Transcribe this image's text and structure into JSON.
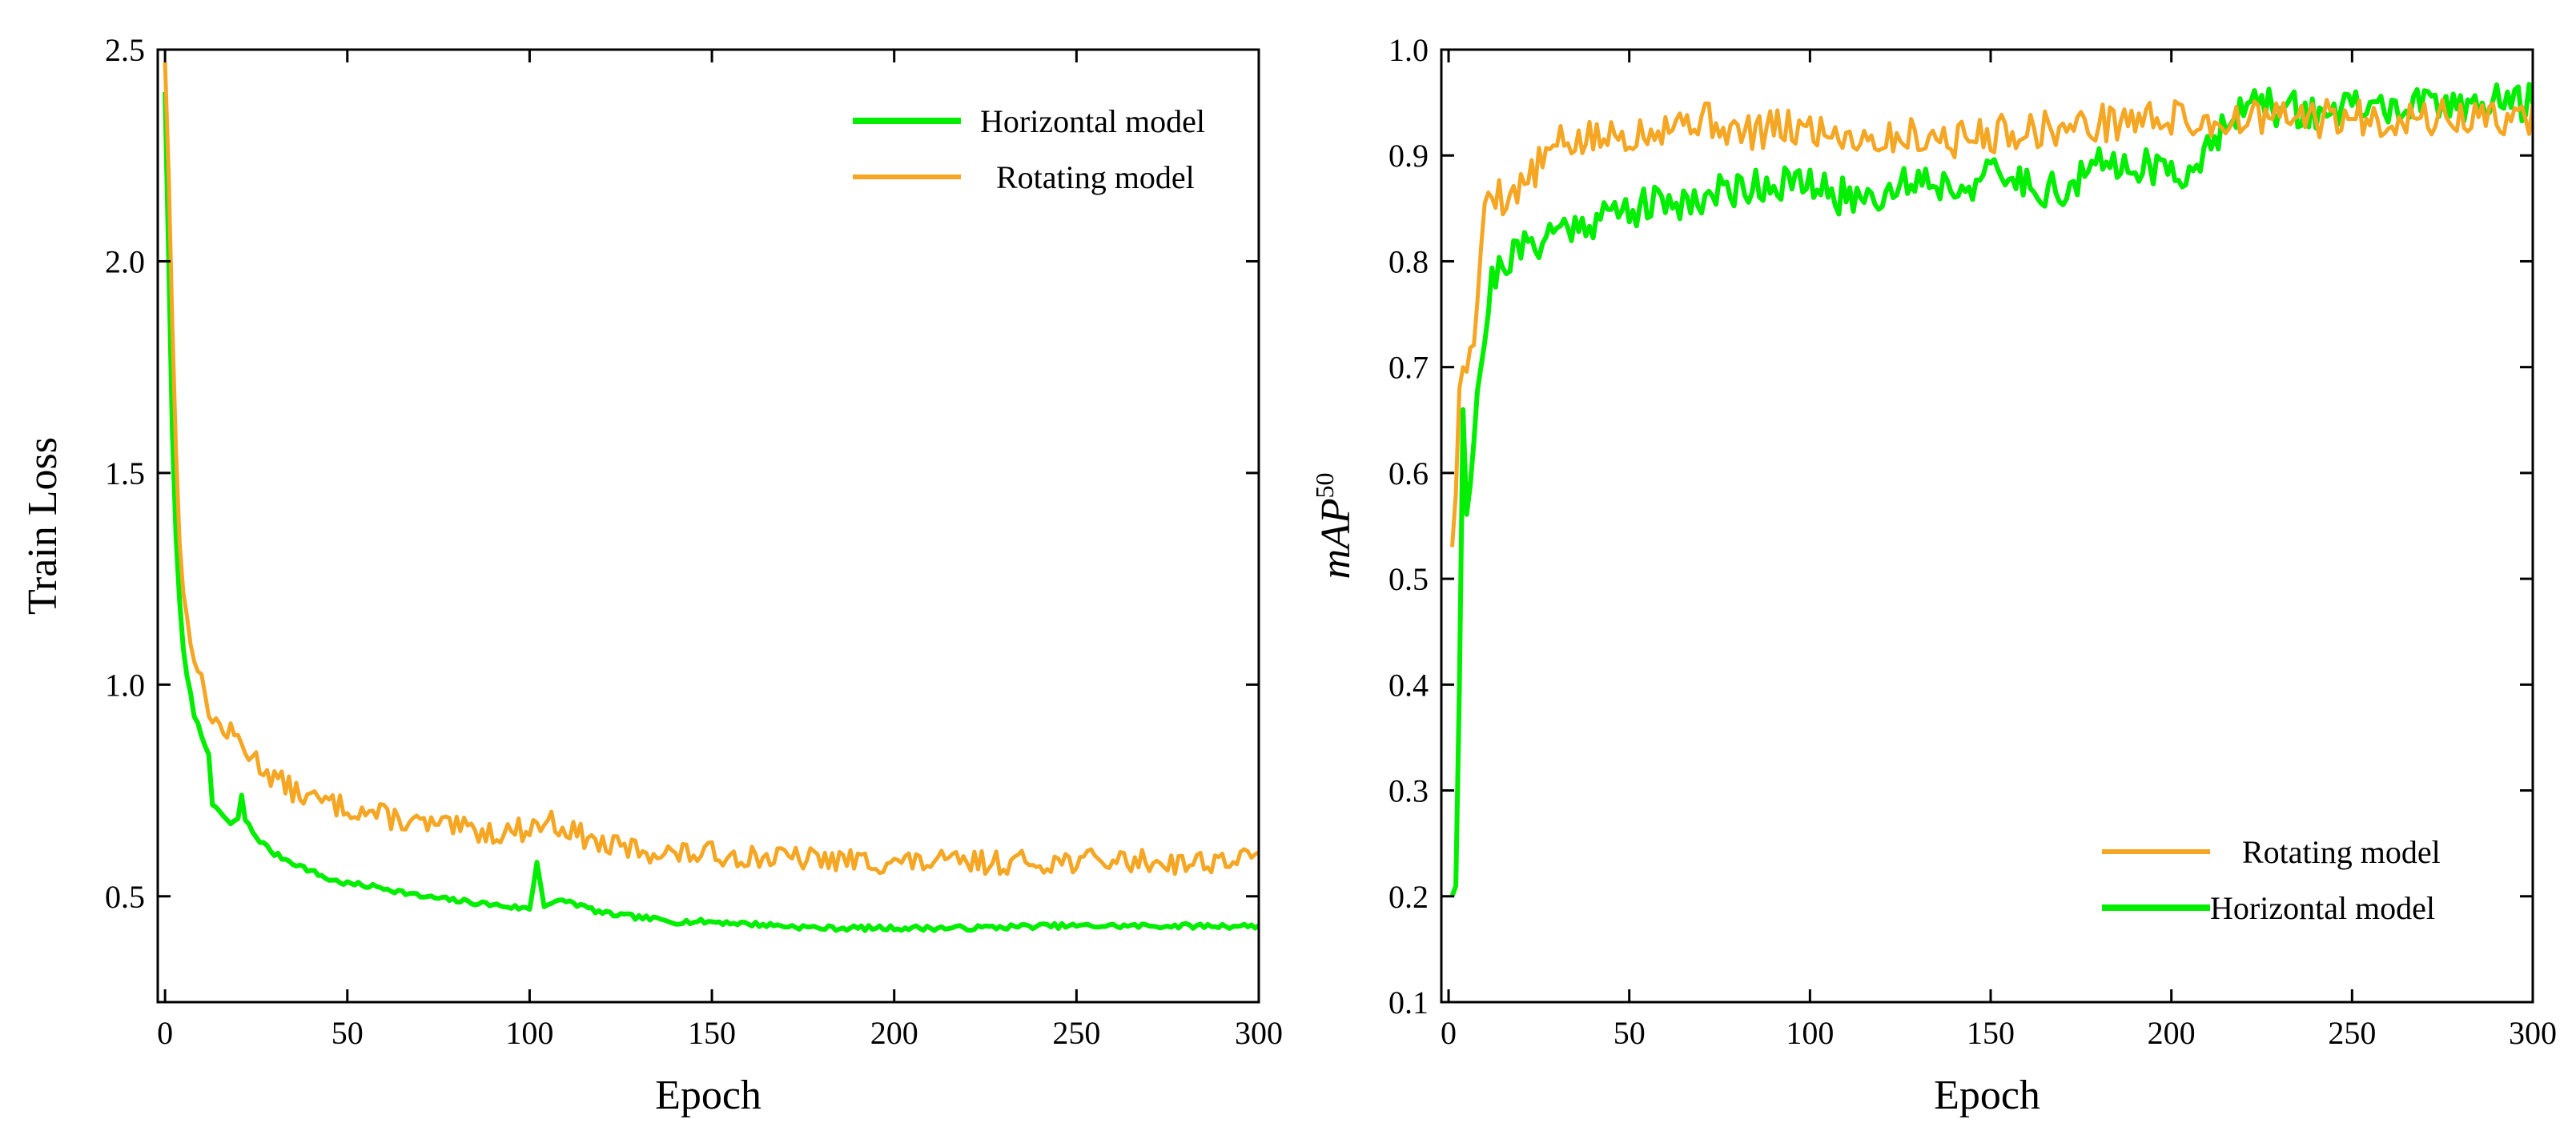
{
  "chart_data": [
    {
      "type": "line",
      "xlabel": "Epoch",
      "ylabel": "Train Loss",
      "xlim": [
        -2,
        300
      ],
      "ylim": [
        0.25,
        2.5
      ],
      "xticks": [
        0,
        50,
        100,
        150,
        200,
        250,
        300
      ],
      "yticks": [
        0.5,
        1.0,
        1.5,
        2.0,
        2.5
      ],
      "xtick_labels": [
        "0",
        "50",
        "100",
        "150",
        "200",
        "250",
        "300"
      ],
      "ytick_labels": [
        "0.5",
        "1.0",
        "1.5",
        "2.0",
        "2.5"
      ],
      "grid": false,
      "legend_position": "top-right",
      "legend_order": [
        0,
        1
      ],
      "series": [
        {
          "name": "Horizontal model",
          "color": "#00ee00",
          "noise": 0.006,
          "seed": 7,
          "points": [
            [
              0,
              2.4
            ],
            [
              1,
              2.0
            ],
            [
              2,
              1.6
            ],
            [
              3,
              1.35
            ],
            [
              4,
              1.2
            ],
            [
              5,
              1.08
            ],
            [
              6,
              1.02
            ],
            [
              8,
              0.93
            ],
            [
              10,
              0.88
            ],
            [
              12,
              0.84
            ],
            [
              13,
              0.71
            ],
            [
              15,
              0.7
            ],
            [
              18,
              0.67
            ],
            [
              20,
              0.68
            ],
            [
              21,
              0.74
            ],
            [
              22,
              0.68
            ],
            [
              25,
              0.64
            ],
            [
              30,
              0.6
            ],
            [
              35,
              0.58
            ],
            [
              40,
              0.56
            ],
            [
              45,
              0.54
            ],
            [
              50,
              0.53
            ],
            [
              60,
              0.52
            ],
            [
              70,
              0.5
            ],
            [
              80,
              0.49
            ],
            [
              90,
              0.48
            ],
            [
              100,
              0.47
            ],
            [
              102,
              0.58
            ],
            [
              104,
              0.48
            ],
            [
              110,
              0.49
            ],
            [
              120,
              0.46
            ],
            [
              130,
              0.45
            ],
            [
              140,
              0.44
            ],
            [
              150,
              0.44
            ],
            [
              160,
              0.435
            ],
            [
              170,
              0.43
            ],
            [
              180,
              0.425
            ],
            [
              200,
              0.425
            ],
            [
              220,
              0.425
            ],
            [
              240,
              0.43
            ],
            [
              260,
              0.43
            ],
            [
              280,
              0.43
            ],
            [
              300,
              0.43
            ]
          ]
        },
        {
          "name": "Rotating model",
          "color": "#f5a623",
          "noise": 0.028,
          "seed": 13,
          "points": [
            [
              0,
              2.47
            ],
            [
              1,
              2.2
            ],
            [
              2,
              1.85
            ],
            [
              3,
              1.55
            ],
            [
              4,
              1.35
            ],
            [
              5,
              1.22
            ],
            [
              6,
              1.15
            ],
            [
              8,
              1.08
            ],
            [
              10,
              1.0
            ],
            [
              13,
              0.92
            ],
            [
              15,
              0.9
            ],
            [
              20,
              0.87
            ],
            [
              25,
              0.82
            ],
            [
              30,
              0.78
            ],
            [
              35,
              0.75
            ],
            [
              40,
              0.73
            ],
            [
              50,
              0.71
            ],
            [
              60,
              0.69
            ],
            [
              70,
              0.67
            ],
            [
              80,
              0.66
            ],
            [
              90,
              0.65
            ],
            [
              100,
              0.66
            ],
            [
              105,
              0.68
            ],
            [
              110,
              0.66
            ],
            [
              120,
              0.62
            ],
            [
              130,
              0.61
            ],
            [
              140,
              0.6
            ],
            [
              150,
              0.6
            ],
            [
              170,
              0.59
            ],
            [
              200,
              0.58
            ],
            [
              230,
              0.58
            ],
            [
              260,
              0.585
            ],
            [
              280,
              0.58
            ],
            [
              300,
              0.59
            ]
          ]
        }
      ]
    },
    {
      "type": "line",
      "xlabel": "Epoch",
      "ylabel": "mAP",
      "ylabel_superscript": "50",
      "xlim": [
        -2,
        300
      ],
      "ylim": [
        0.1,
        1.0
      ],
      "xticks": [
        0,
        50,
        100,
        150,
        200,
        250,
        300
      ],
      "yticks": [
        0.1,
        0.2,
        0.3,
        0.4,
        0.5,
        0.6,
        0.7,
        0.8,
        0.9,
        1.0
      ],
      "xtick_labels": [
        "0",
        "50",
        "100",
        "150",
        "200",
        "250",
        "300"
      ],
      "ytick_labels": [
        "0.1",
        "0.2",
        "0.3",
        "0.4",
        "0.5",
        "0.6",
        "0.7",
        "0.8",
        "0.9",
        "1.0"
      ],
      "grid": false,
      "legend_position": "bottom-right",
      "legend_order": [
        1,
        0
      ],
      "series": [
        {
          "name": "Horizontal model",
          "color": "#00ee00",
          "noise": 0.018,
          "seed": 21,
          "points": [
            [
              1,
              0.2
            ],
            [
              2,
              0.21
            ],
            [
              3,
              0.4
            ],
            [
              4,
              0.66
            ],
            [
              5,
              0.57
            ],
            [
              6,
              0.6
            ],
            [
              8,
              0.68
            ],
            [
              10,
              0.73
            ],
            [
              12,
              0.78
            ],
            [
              15,
              0.8
            ],
            [
              20,
              0.81
            ],
            [
              25,
              0.82
            ],
            [
              30,
              0.83
            ],
            [
              40,
              0.84
            ],
            [
              50,
              0.85
            ],
            [
              60,
              0.855
            ],
            [
              70,
              0.86
            ],
            [
              80,
              0.87
            ],
            [
              90,
              0.875
            ],
            [
              100,
              0.87
            ],
            [
              110,
              0.86
            ],
            [
              120,
              0.865
            ],
            [
              130,
              0.88
            ],
            [
              140,
              0.87
            ],
            [
              150,
              0.88
            ],
            [
              160,
              0.875
            ],
            [
              170,
              0.865
            ],
            [
              180,
              0.89
            ],
            [
              190,
              0.895
            ],
            [
              200,
              0.88
            ],
            [
              210,
              0.9
            ],
            [
              215,
              0.94
            ],
            [
              220,
              0.945
            ],
            [
              230,
              0.945
            ],
            [
              240,
              0.94
            ],
            [
              250,
              0.945
            ],
            [
              260,
              0.945
            ],
            [
              270,
              0.945
            ],
            [
              280,
              0.95
            ],
            [
              290,
              0.95
            ],
            [
              300,
              0.95
            ]
          ]
        },
        {
          "name": "Rotating model",
          "color": "#f5a623",
          "noise": 0.018,
          "seed": 5,
          "points": [
            [
              1,
              0.53
            ],
            [
              2,
              0.58
            ],
            [
              3,
              0.68
            ],
            [
              4,
              0.7
            ],
            [
              6,
              0.71
            ],
            [
              8,
              0.75
            ],
            [
              10,
              0.86
            ],
            [
              12,
              0.87
            ],
            [
              15,
              0.86
            ],
            [
              20,
              0.87
            ],
            [
              25,
              0.89
            ],
            [
              30,
              0.91
            ],
            [
              40,
              0.915
            ],
            [
              50,
              0.92
            ],
            [
              60,
              0.93
            ],
            [
              70,
              0.935
            ],
            [
              75,
              0.93
            ],
            [
              80,
              0.92
            ],
            [
              90,
              0.925
            ],
            [
              100,
              0.925
            ],
            [
              110,
              0.92
            ],
            [
              120,
              0.915
            ],
            [
              130,
              0.92
            ],
            [
              140,
              0.915
            ],
            [
              150,
              0.92
            ],
            [
              160,
              0.925
            ],
            [
              170,
              0.925
            ],
            [
              180,
              0.93
            ],
            [
              190,
              0.935
            ],
            [
              200,
              0.935
            ],
            [
              210,
              0.93
            ],
            [
              220,
              0.935
            ],
            [
              230,
              0.935
            ],
            [
              240,
              0.935
            ],
            [
              250,
              0.935
            ],
            [
              260,
              0.935
            ],
            [
              270,
              0.935
            ],
            [
              280,
              0.935
            ],
            [
              290,
              0.935
            ],
            [
              300,
              0.935
            ]
          ]
        }
      ]
    }
  ]
}
